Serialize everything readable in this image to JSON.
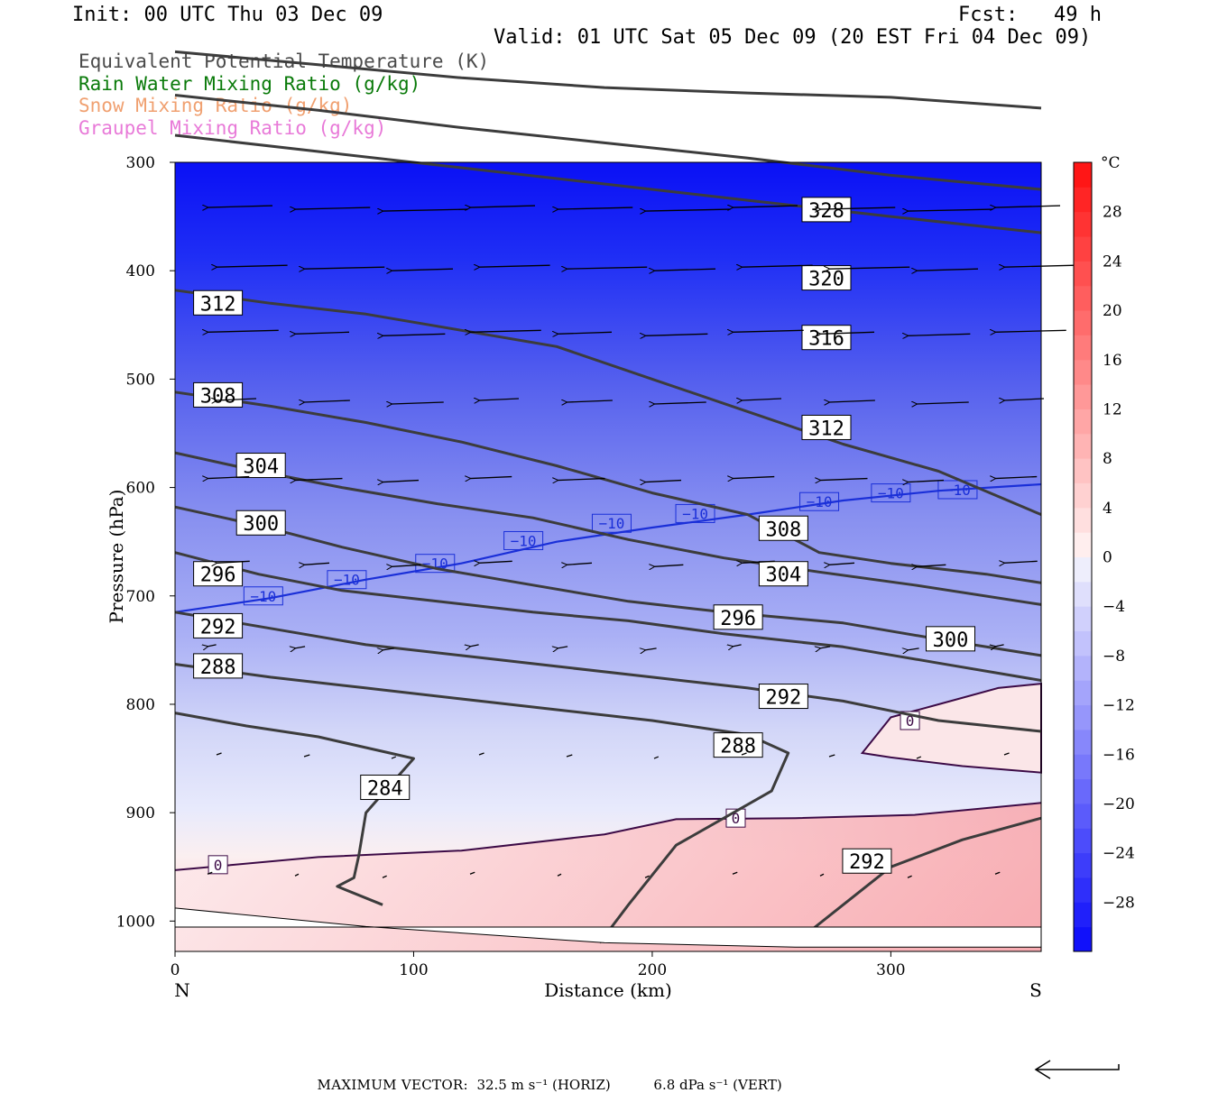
{
  "header": {
    "init": "Init: 00 UTC Thu 03 Dec 09",
    "fcst": "Fcst:   49 h",
    "valid": "Valid: 01 UTC Sat 05 Dec 09 (20 EST Fri 04 Dec 09)"
  },
  "legend": [
    "Equivalent Potential Temperature (K)",
    "Rain Water Mixing Ratio (g/kg)",
    "Snow Mixing Ratio (g/kg)",
    "Graupel Mixing Ratio (g/kg)"
  ],
  "colors": {
    "theta_e": "#3c3c3c",
    "temp_minus10": "#1a2fd8",
    "temp_zero": "#3c0a46",
    "rain": "#0a7a0a",
    "snow": "#f0a070",
    "graupel": "#e87ad8"
  },
  "chart_data": {
    "type": "cross-section",
    "xlabel": "Distance (km)",
    "ylabel": "Pressure (hPa)",
    "xlim": [
      0,
      363
    ],
    "ylim": [
      1028,
      300
    ],
    "x_ticks": [
      "0",
      "100",
      "200",
      "300"
    ],
    "x_tick_values": [
      0,
      100,
      200,
      300
    ],
    "y_ticks": [
      "300",
      "400",
      "500",
      "600",
      "700",
      "800",
      "900",
      "1000"
    ],
    "y_tick_values": [
      300,
      400,
      500,
      600,
      700,
      800,
      900,
      1000
    ],
    "endpoints": {
      "left": "N",
      "right": "S"
    },
    "colorbar": {
      "unit": "°C",
      "ticks": [
        "28",
        "24",
        "20",
        "16",
        "12",
        "8",
        "4",
        "0",
        "−4",
        "−8",
        "−12",
        "−16",
        "−20",
        "−24",
        "−28"
      ],
      "tick_values": [
        28,
        24,
        20,
        16,
        12,
        8,
        4,
        0,
        -4,
        -8,
        -12,
        -16,
        -20,
        -24,
        -28
      ],
      "range": [
        -32,
        32
      ],
      "interval": 4
    },
    "temperature_contours": [
      {
        "label": "−10",
        "value": -10,
        "points": [
          [
            0,
            715
          ],
          [
            40,
            702
          ],
          [
            80,
            685
          ],
          [
            120,
            670
          ],
          [
            160,
            650
          ],
          [
            200,
            637
          ],
          [
            240,
            625
          ],
          [
            280,
            612
          ],
          [
            320,
            603
          ],
          [
            363,
            597
          ]
        ],
        "labels": [
          [
            37,
            700
          ],
          [
            72,
            685
          ],
          [
            109,
            670
          ],
          [
            146,
            649
          ],
          [
            183,
            633
          ],
          [
            218,
            624
          ],
          [
            270,
            613
          ],
          [
            300,
            605
          ],
          [
            328,
            602
          ]
        ]
      },
      {
        "label": "0",
        "value": 0,
        "points": [
          [
            0,
            953
          ],
          [
            60,
            941
          ],
          [
            120,
            935
          ],
          [
            180,
            920
          ],
          [
            210,
            906
          ],
          [
            260,
            905
          ],
          [
            310,
            902
          ],
          [
            363,
            891
          ]
        ],
        "labels": [
          [
            18,
            948
          ],
          [
            235,
            905
          ]
        ]
      },
      {
        "label": "0",
        "value": 0,
        "closed": true,
        "points": [
          [
            288,
            845
          ],
          [
            300,
            812
          ],
          [
            320,
            800
          ],
          [
            345,
            785
          ],
          [
            363,
            781
          ],
          [
            363,
            863
          ],
          [
            330,
            857
          ],
          [
            300,
            849
          ]
        ],
        "labels": [
          [
            308,
            815
          ]
        ]
      }
    ],
    "theta_e_contours": [
      {
        "value": 328,
        "label": "328",
        "points": [
          [
            0,
            198
          ],
          [
            60,
            210
          ],
          [
            120,
            222
          ],
          [
            180,
            231
          ],
          [
            240,
            236
          ],
          [
            300,
            240
          ],
          [
            363,
            250
          ]
        ],
        "labels": [
          [
            273,
            344
          ]
        ]
      },
      {
        "value": 320,
        "label": "320",
        "points": [
          [
            0,
            238
          ],
          [
            60,
            252
          ],
          [
            120,
            268
          ],
          [
            180,
            282
          ],
          [
            240,
            296
          ],
          [
            300,
            312
          ],
          [
            363,
            325
          ]
        ],
        "labels": [
          [
            273,
            407
          ]
        ]
      },
      {
        "value": 316,
        "label": "316",
        "points": [
          [
            0,
            275
          ],
          [
            60,
            290
          ],
          [
            120,
            305
          ],
          [
            180,
            320
          ],
          [
            240,
            335
          ],
          [
            300,
            350
          ],
          [
            363,
            365
          ]
        ],
        "labels": [
          [
            273,
            462
          ]
        ]
      },
      {
        "value": 312,
        "label": "312",
        "points": [
          [
            0,
            418
          ],
          [
            40,
            430
          ],
          [
            80,
            440
          ],
          [
            120,
            455
          ],
          [
            160,
            470
          ],
          [
            200,
            500
          ],
          [
            240,
            530
          ],
          [
            280,
            560
          ],
          [
            320,
            585
          ],
          [
            363,
            625
          ]
        ],
        "labels": [
          [
            18,
            430
          ],
          [
            273,
            545
          ]
        ]
      },
      {
        "value": 308,
        "label": "308",
        "points": [
          [
            0,
            512
          ],
          [
            40,
            525
          ],
          [
            80,
            540
          ],
          [
            120,
            558
          ],
          [
            160,
            580
          ],
          [
            200,
            605
          ],
          [
            240,
            625
          ],
          [
            270,
            660
          ],
          [
            300,
            670
          ],
          [
            340,
            680
          ],
          [
            363,
            688
          ]
        ],
        "labels": [
          [
            18,
            515
          ],
          [
            255,
            638
          ]
        ]
      },
      {
        "value": 304,
        "label": "304",
        "points": [
          [
            0,
            568
          ],
          [
            35,
            585
          ],
          [
            70,
            600
          ],
          [
            110,
            615
          ],
          [
            150,
            628
          ],
          [
            190,
            648
          ],
          [
            230,
            665
          ],
          [
            270,
            678
          ],
          [
            310,
            690
          ],
          [
            363,
            708
          ]
        ],
        "labels": [
          [
            36,
            580
          ],
          [
            255,
            680
          ]
        ]
      },
      {
        "value": 300,
        "label": "300",
        "points": [
          [
            0,
            618
          ],
          [
            35,
            635
          ],
          [
            70,
            655
          ],
          [
            110,
            675
          ],
          [
            150,
            690
          ],
          [
            190,
            705
          ],
          [
            230,
            715
          ],
          [
            280,
            725
          ],
          [
            320,
            740
          ],
          [
            363,
            755
          ]
        ],
        "labels": [
          [
            36,
            633
          ],
          [
            325,
            740
          ]
        ]
      },
      {
        "value": 296,
        "label": "296",
        "points": [
          [
            0,
            660
          ],
          [
            35,
            680
          ],
          [
            70,
            695
          ],
          [
            110,
            705
          ],
          [
            150,
            715
          ],
          [
            190,
            723
          ],
          [
            230,
            735
          ],
          [
            280,
            747
          ],
          [
            320,
            762
          ],
          [
            363,
            778
          ]
        ],
        "labels": [
          [
            18,
            680
          ],
          [
            236,
            720
          ]
        ]
      },
      {
        "value": 292,
        "label": "292",
        "points": [
          [
            0,
            715
          ],
          [
            40,
            730
          ],
          [
            80,
            745
          ],
          [
            120,
            755
          ],
          [
            160,
            765
          ],
          [
            200,
            775
          ],
          [
            240,
            785
          ],
          [
            280,
            797
          ],
          [
            320,
            815
          ],
          [
            363,
            825
          ]
        ],
        "labels": [
          [
            18,
            728
          ],
          [
            255,
            793
          ]
        ]
      },
      {
        "value": 288,
        "label": "288",
        "points": [
          [
            0,
            763
          ],
          [
            40,
            775
          ],
          [
            80,
            785
          ],
          [
            120,
            795
          ],
          [
            160,
            805
          ],
          [
            200,
            815
          ],
          [
            240,
            828
          ],
          [
            257,
            845
          ],
          [
            250,
            880
          ],
          [
            210,
            930
          ],
          [
            190,
            985
          ],
          [
            178,
            1020
          ]
        ],
        "labels": [
          [
            18,
            765
          ],
          [
            236,
            838
          ]
        ]
      },
      {
        "value": 284,
        "label": "284",
        "points": [
          [
            0,
            808
          ],
          [
            30,
            820
          ],
          [
            60,
            830
          ],
          [
            90,
            845
          ],
          [
            100,
            850
          ],
          [
            90,
            875
          ],
          [
            80,
            900
          ],
          [
            77,
            940
          ],
          [
            75,
            960
          ],
          [
            68,
            968
          ],
          [
            87,
            985
          ]
        ],
        "labels": [
          [
            88,
            877
          ]
        ]
      },
      {
        "value": 292,
        "label": "292",
        "points": [
          [
            260,
            1020
          ],
          [
            280,
            985
          ],
          [
            300,
            950
          ],
          [
            330,
            925
          ],
          [
            363,
            905
          ]
        ],
        "labels": [
          [
            290,
            945
          ]
        ]
      }
    ],
    "footer": {
      "label": "MAXIMUM VECTOR:",
      "horiz": "32.5 m s⁻¹ (HORIZ)",
      "vert": "6.8 dPa s⁻¹ (VERT)"
    }
  }
}
